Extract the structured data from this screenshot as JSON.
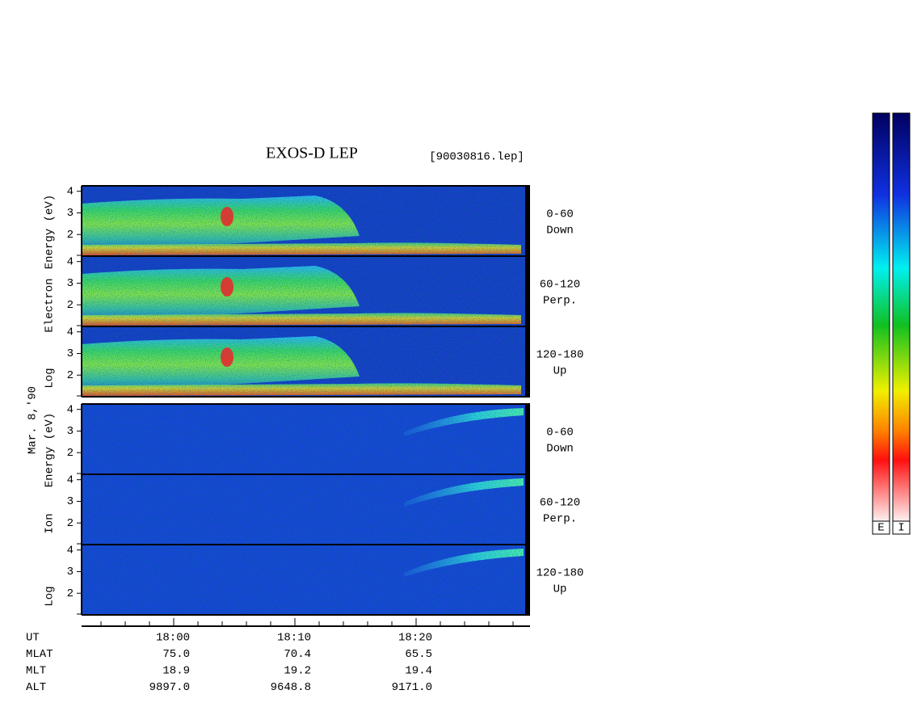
{
  "chart_data": {
    "type": "spectrogram",
    "title": "EXOS-D LEP",
    "subtitle": "[90030816.lep]",
    "date": "Mar. 8,'90",
    "ylim": [
      1,
      4.25
    ],
    "yticks": [
      2,
      3,
      4
    ],
    "groups": [
      {
        "kind": "electron",
        "label_words": [
          "Log",
          "Electron",
          "Energy (eV)"
        ],
        "panels": [
          {
            "range": "0-60",
            "direction": "Down"
          },
          {
            "range": "60-120",
            "direction": "Perp."
          },
          {
            "range": "120-180",
            "direction": "Up"
          }
        ]
      },
      {
        "kind": "ion",
        "label_words": [
          "Log",
          "Ion",
          "Energy (eV)"
        ],
        "panels": [
          {
            "range": "0-60",
            "direction": "Down"
          },
          {
            "range": "60-120",
            "direction": "Perp."
          },
          {
            "range": "120-180",
            "direction": "Up"
          }
        ]
      }
    ],
    "ephemeris": [
      {
        "name": "UT",
        "values": [
          "18:00",
          "18:10",
          "18:20"
        ]
      },
      {
        "name": "MLAT",
        "values": [
          "75.0",
          "70.4",
          "65.5"
        ]
      },
      {
        "name": "MLT",
        "values": [
          "18.9",
          "19.2",
          "19.4"
        ]
      },
      {
        "name": "ALT",
        "values": [
          "9897.0",
          "9648.8",
          "9171.0"
        ]
      }
    ],
    "colorbars": [
      "E",
      "I"
    ]
  }
}
